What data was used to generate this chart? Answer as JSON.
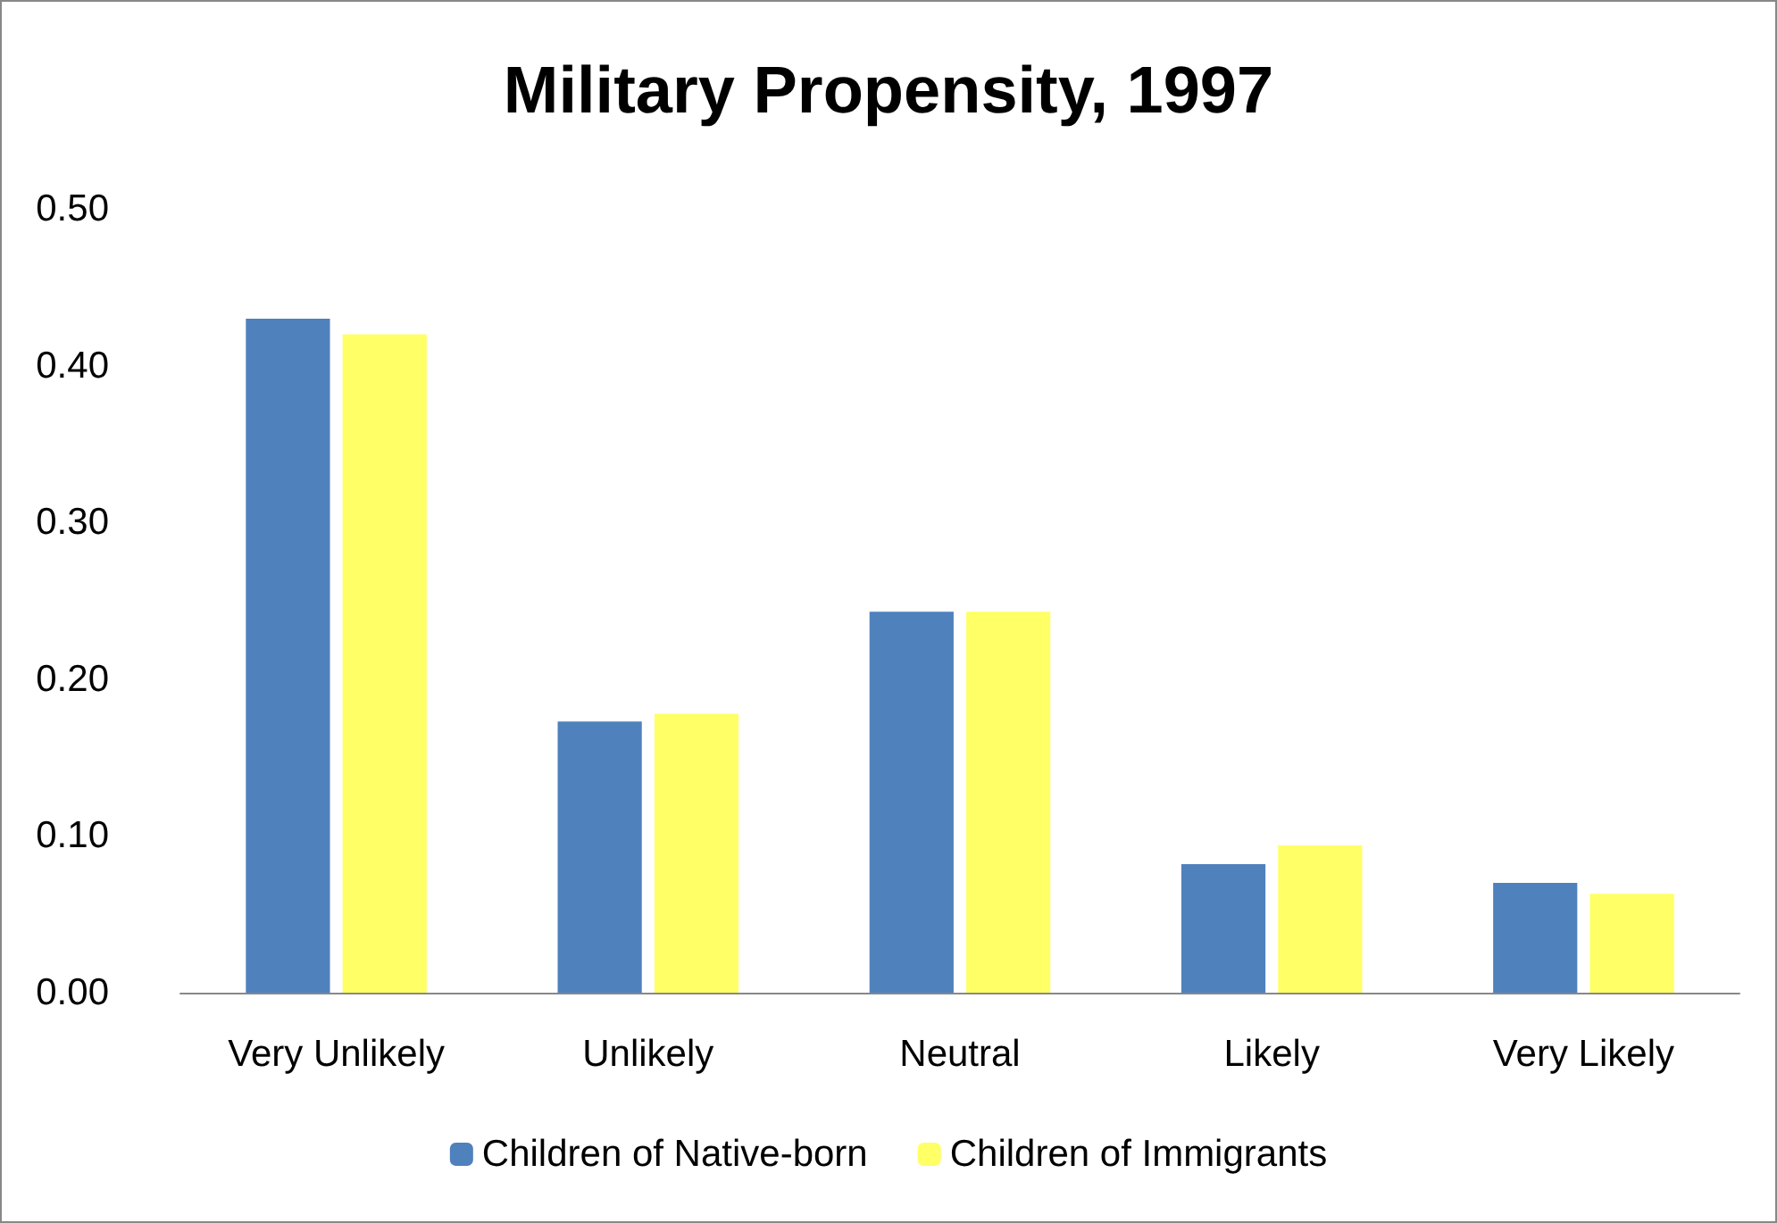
{
  "chart_data": {
    "type": "bar",
    "title": "Military Propensity, 1997",
    "categories": [
      "Very Unlikely",
      "Unlikely",
      "Neutral",
      "Likely",
      "Very Likely"
    ],
    "series": [
      {
        "name": "Children of Native-born",
        "color": "#4f81bd",
        "values": [
          0.43,
          0.173,
          0.243,
          0.082,
          0.07
        ]
      },
      {
        "name": "Children of Immigrants",
        "color": "#ffff66",
        "values": [
          0.42,
          0.178,
          0.243,
          0.094,
          0.063
        ]
      }
    ],
    "ylim": [
      0,
      0.5
    ],
    "yticks": [
      {
        "value": 0,
        "label": "0.00"
      },
      {
        "value": 0.1,
        "label": "0.10"
      },
      {
        "value": 0.2,
        "label": "0.20"
      },
      {
        "value": 0.3,
        "label": "0.30"
      },
      {
        "value": 0.4,
        "label": "0.40"
      },
      {
        "value": 0.5,
        "label": "0.50"
      }
    ],
    "grid": false,
    "legend": "bottom"
  }
}
